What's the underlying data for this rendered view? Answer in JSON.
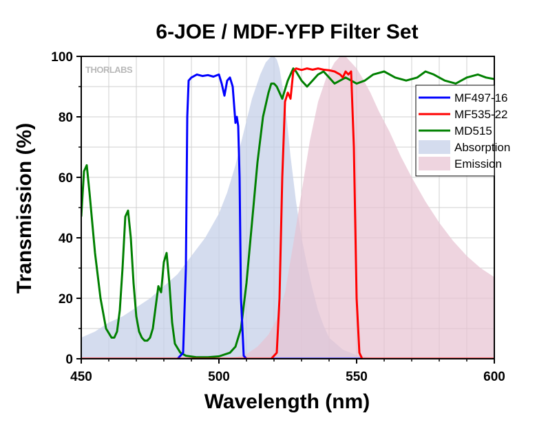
{
  "watermark": "THORLABS",
  "chart_data": {
    "type": "line",
    "title": "6-JOE / MDF-YFP Filter Set",
    "xlabel": "Wavelength (nm)",
    "ylabel": "Transmission (%)",
    "xlim": [
      450,
      600
    ],
    "ylim": [
      0,
      100
    ],
    "xticks": [
      450,
      500,
      550,
      600
    ],
    "yticks": [
      0,
      20,
      40,
      60,
      80,
      100
    ],
    "grid": true,
    "legend_position": "top-right",
    "series": [
      {
        "name": "MF497-16",
        "kind": "line",
        "color": "#0000ff",
        "x": [
          450,
          485,
          487,
          488,
          488.5,
          489,
          490,
          492,
          494,
          496,
          498,
          500,
          501,
          502,
          503,
          504,
          505,
          506,
          506.5,
          507,
          507.5,
          508,
          509,
          510,
          520,
          600
        ],
        "y": [
          0,
          0,
          2,
          30,
          80,
          92,
          93,
          94,
          93.5,
          93.8,
          93.3,
          94,
          91,
          87,
          92,
          93,
          90,
          78,
          80,
          77,
          60,
          20,
          1,
          0,
          0,
          0
        ]
      },
      {
        "name": "MF535-22",
        "kind": "line",
        "color": "#ff0000",
        "x": [
          450,
          519,
          521,
          522,
          523,
          524,
          525,
          526,
          527,
          528,
          530,
          532,
          534,
          536,
          538,
          540,
          542,
          544,
          545,
          546,
          547,
          548,
          549,
          550,
          551,
          552,
          560,
          600
        ],
        "y": [
          0,
          0,
          2,
          20,
          60,
          85,
          88,
          86,
          95,
          96,
          95.5,
          96,
          95.6,
          96,
          95.6,
          95.4,
          95,
          94,
          93,
          95,
          94,
          95,
          70,
          20,
          2,
          0,
          0,
          0
        ]
      },
      {
        "name": "MD515",
        "kind": "line",
        "color": "#008000",
        "x": [
          450,
          451,
          452,
          453,
          455,
          457,
          459,
          461,
          462,
          463,
          464,
          465,
          466,
          467,
          468,
          469,
          470,
          471,
          472,
          473,
          474,
          475,
          476,
          477,
          478,
          479,
          480,
          481,
          482,
          483,
          484,
          486,
          488,
          492,
          496,
          500,
          504,
          506,
          508,
          510,
          512,
          514,
          516,
          518,
          519,
          520,
          521,
          522,
          523,
          524,
          525,
          526,
          527,
          528,
          530,
          532,
          534,
          536,
          538,
          540,
          542,
          544,
          546,
          548,
          550,
          553,
          556,
          560,
          564,
          568,
          572,
          575,
          578,
          582,
          586,
          590,
          594,
          597,
          600
        ],
        "y": [
          47,
          62,
          64,
          55,
          35,
          20,
          10,
          7,
          7,
          9,
          16,
          30,
          47,
          49,
          40,
          25,
          14,
          9,
          7,
          6,
          6,
          7,
          10,
          17,
          24,
          22,
          32,
          35,
          25,
          12,
          5,
          2,
          1,
          0.5,
          0.5,
          0.8,
          2,
          4,
          10,
          25,
          45,
          65,
          80,
          88,
          91,
          91,
          90,
          88,
          86,
          89,
          92,
          94,
          96,
          95,
          92,
          90,
          92,
          94,
          95,
          93,
          91,
          92,
          93,
          92,
          91,
          92,
          94,
          95,
          93,
          92,
          93,
          95,
          94,
          92,
          91,
          93,
          94,
          93,
          92.5
        ]
      },
      {
        "name": "Absorption",
        "kind": "area",
        "color": "#c5d0e8",
        "opacity": 0.75,
        "x": [
          450,
          455,
          460,
          465,
          470,
          475,
          480,
          485,
          490,
          495,
          500,
          503,
          506,
          509,
          512,
          515,
          517,
          519,
          520,
          521,
          522,
          524,
          526,
          528,
          530,
          532,
          534,
          536,
          538,
          540,
          545,
          550,
          555,
          560
        ],
        "y": [
          7,
          9,
          12,
          14,
          17,
          20,
          24,
          28,
          34,
          40,
          48,
          55,
          64,
          75,
          86,
          94,
          98,
          100,
          100,
          99,
          96,
          85,
          67,
          52,
          40,
          31,
          23,
          16,
          11,
          7,
          3,
          1.2,
          0.4,
          0
        ]
      },
      {
        "name": "Emission",
        "kind": "area",
        "color": "#e7c2d1",
        "opacity": 0.7,
        "x": [
          500,
          506,
          510,
          514,
          518,
          521,
          524,
          527,
          530,
          533,
          536,
          539,
          542,
          544,
          546,
          548,
          550,
          552,
          555,
          558,
          562,
          566,
          570,
          575,
          580,
          585,
          590,
          595,
          600
        ],
        "y": [
          0,
          0.5,
          1.5,
          4,
          8,
          13,
          22,
          38,
          55,
          72,
          85,
          93,
          98,
          100,
          100,
          98,
          96,
          93,
          88,
          82,
          75,
          67,
          60,
          52,
          45,
          39,
          34,
          30,
          27
        ]
      }
    ],
    "legend": [
      "MF497-16",
      "MF535-22",
      "MD515",
      "Absorption",
      "Emission"
    ]
  }
}
